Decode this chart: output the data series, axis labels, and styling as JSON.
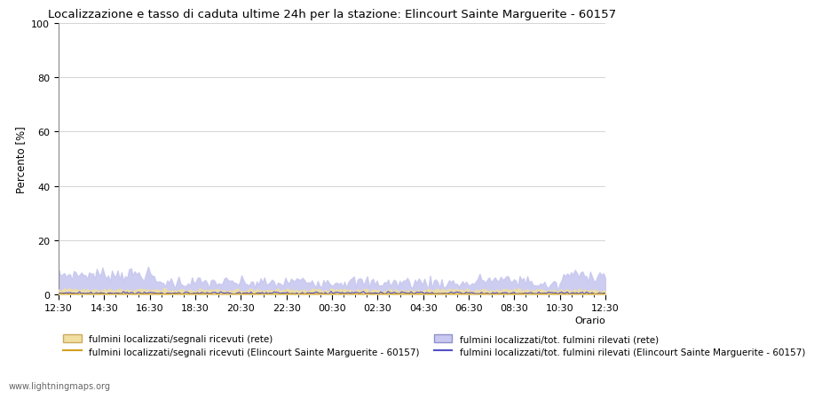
{
  "title": "Localizzazione e tasso di caduta ultime 24h per la stazione: Elincourt Sainte Marguerite - 60157",
  "ylabel": "Percento [%]",
  "xlabel_right": "Orario",
  "ylim": [
    0,
    100
  ],
  "yticks": [
    0,
    20,
    40,
    60,
    80,
    100
  ],
  "xtick_labels": [
    "12:30",
    "14:30",
    "16:30",
    "18:30",
    "20:30",
    "22:30",
    "00:30",
    "02:30",
    "04:30",
    "06:30",
    "08:30",
    "10:30",
    "12:30"
  ],
  "color_fill_rete_segnali": "#f0dfa0",
  "color_fill_rete_tot": "#c8c8f0",
  "color_line_station_segnali": "#d4a020",
  "color_line_station_tot": "#5050c8",
  "legend_labels": [
    "fulmini localizzati/segnali ricevuti (rete)",
    "fulmini localizzati/segnali ricevuti (Elincourt Sainte Marguerite - 60157)",
    "fulmini localizzati/tot. fulmini rilevati (rete)",
    "fulmini localizzati/tot. fulmini rilevati (Elincourt Sainte Marguerite - 60157)"
  ],
  "watermark": "www.lightningmaps.org",
  "title_fontsize": 9.5,
  "axis_fontsize": 8.5,
  "tick_fontsize": 8,
  "legend_fontsize": 7.5
}
